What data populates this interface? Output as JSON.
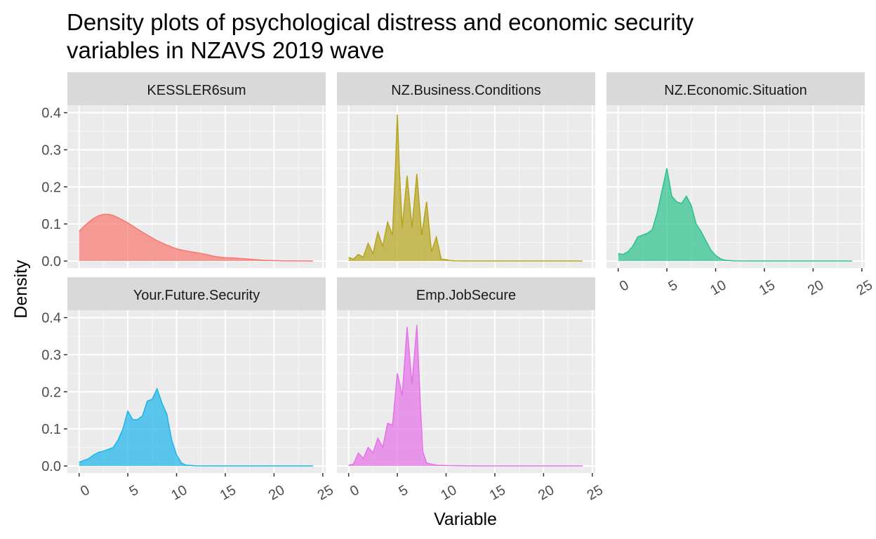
{
  "chart_data": {
    "type": "area",
    "title": "Density plots of psychological distress and economic security variables in NZAVS 2019 wave",
    "xlabel": "Variable",
    "ylabel": "Density",
    "xlim": [
      0,
      25
    ],
    "ylim": [
      0,
      0.4
    ],
    "x_ticks": [
      "0",
      "5",
      "10",
      "15",
      "20",
      "25"
    ],
    "y_ticks": [
      "0.0",
      "0.1",
      "0.2",
      "0.3",
      "0.4"
    ],
    "grid": true,
    "legend": "none",
    "panels": [
      {
        "name": "KESSLER6sum",
        "color": "#F8766D",
        "x": [
          0,
          0.5,
          1,
          1.5,
          2,
          2.5,
          3,
          3.5,
          4,
          5,
          6,
          7,
          8,
          9,
          10,
          11,
          12,
          13,
          14,
          15,
          16,
          17,
          18,
          19,
          20,
          21,
          22,
          23,
          24
        ],
        "y": [
          0.08,
          0.093,
          0.105,
          0.115,
          0.122,
          0.126,
          0.126,
          0.123,
          0.117,
          0.103,
          0.086,
          0.07,
          0.055,
          0.043,
          0.033,
          0.027,
          0.023,
          0.018,
          0.012,
          0.009,
          0.008,
          0.006,
          0.004,
          0.002,
          0.001,
          0.0005,
          0.0003,
          0.0002,
          0.0001
        ]
      },
      {
        "name": "NZ.Business.Conditions",
        "color": "#B5A41B",
        "x": [
          0,
          0.5,
          1,
          1.5,
          2,
          2.5,
          3,
          3.5,
          4,
          4.5,
          4.8,
          5,
          5.2,
          5.5,
          6,
          6.5,
          7,
          7.5,
          8,
          8.5,
          9,
          9.5,
          10,
          10.5,
          11,
          12,
          14,
          16,
          18,
          20,
          22,
          24
        ],
        "y": [
          0.01,
          0.005,
          0.018,
          0.01,
          0.048,
          0.02,
          0.078,
          0.04,
          0.105,
          0.07,
          0.25,
          0.395,
          0.25,
          0.09,
          0.23,
          0.09,
          0.235,
          0.07,
          0.16,
          0.025,
          0.065,
          0.005,
          0.004,
          0.001,
          0.0005,
          0.0002,
          0.0001,
          0.0001,
          0.0001,
          0.0001,
          0.0001,
          0.0001
        ]
      },
      {
        "name": "NZ.Economic.Situation",
        "color": "#2BC28C",
        "x": [
          0,
          0.5,
          1,
          1.5,
          2,
          2.5,
          3,
          3.5,
          4,
          4.5,
          5,
          5.5,
          6,
          6.5,
          7,
          7.5,
          8,
          8.5,
          9,
          9.5,
          10,
          10.5,
          11,
          12,
          14,
          16,
          18,
          20,
          22,
          24
        ],
        "y": [
          0.02,
          0.018,
          0.025,
          0.04,
          0.065,
          0.07,
          0.075,
          0.085,
          0.13,
          0.19,
          0.25,
          0.175,
          0.16,
          0.155,
          0.175,
          0.15,
          0.1,
          0.08,
          0.055,
          0.03,
          0.015,
          0.006,
          0.002,
          0.0005,
          0.0002,
          0.0001,
          0.0001,
          0.0001,
          0.0001,
          0.0001
        ]
      },
      {
        "name": "Your.Future.Security",
        "color": "#1BB5EA",
        "x": [
          0,
          0.5,
          1,
          1.5,
          2,
          2.5,
          3,
          3.5,
          4,
          4.5,
          5,
          5.5,
          6,
          6.5,
          7,
          7.5,
          8,
          8.5,
          9,
          9.5,
          10,
          10.5,
          11,
          12,
          14,
          16,
          18,
          20,
          22,
          24
        ],
        "y": [
          0.01,
          0.015,
          0.02,
          0.03,
          0.037,
          0.04,
          0.045,
          0.05,
          0.07,
          0.1,
          0.148,
          0.125,
          0.125,
          0.135,
          0.175,
          0.18,
          0.208,
          0.17,
          0.14,
          0.07,
          0.03,
          0.008,
          0.002,
          0.0005,
          0.0002,
          0.0001,
          0.0001,
          0.0001,
          0.0001,
          0.0001
        ]
      },
      {
        "name": "Emp.JobSecure",
        "color": "#E670E8",
        "x": [
          0,
          0.5,
          1,
          1.5,
          2,
          2.5,
          3,
          3.5,
          4,
          4.5,
          5,
          5.5,
          6,
          6.5,
          7,
          7.3,
          7.6,
          8,
          9,
          10,
          12,
          14,
          16,
          18,
          20,
          22,
          24
        ],
        "y": [
          0.002,
          0.005,
          0.035,
          0.02,
          0.05,
          0.035,
          0.075,
          0.05,
          0.115,
          0.11,
          0.25,
          0.19,
          0.375,
          0.22,
          0.38,
          0.2,
          0.04,
          0.008,
          0.002,
          0.001,
          0.0005,
          0.0002,
          0.0001,
          0.0001,
          0.0001,
          0.0001,
          0.0001
        ]
      }
    ]
  }
}
